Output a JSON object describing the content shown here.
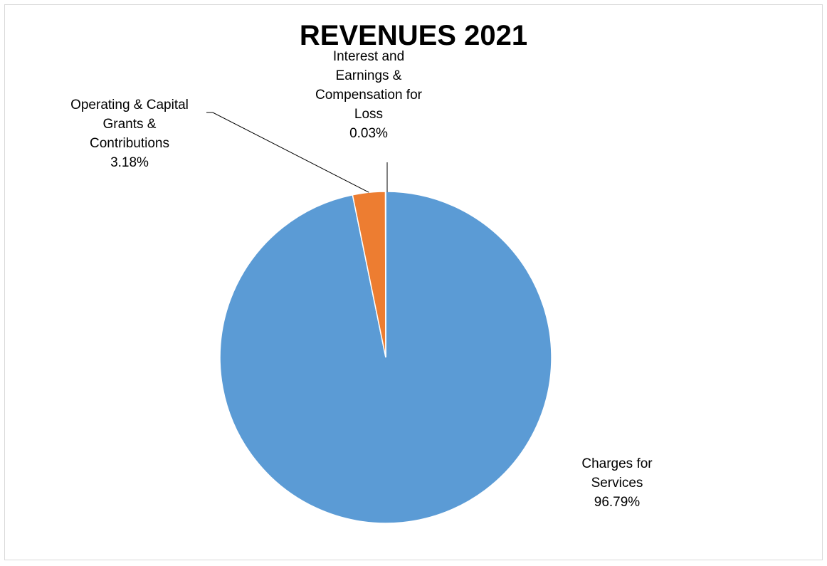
{
  "chart_data": {
    "type": "pie",
    "title": "REVENUES 2021",
    "slices": [
      {
        "name": "Charges for Services",
        "label_lines": [
          "Charges for",
          "Services"
        ],
        "value": 96.79,
        "value_label": "96.79%",
        "color": "#5B9BD5"
      },
      {
        "name": "Operating & Capital Grants & Contributions",
        "label_lines": [
          "Operating & Capital",
          "Grants &",
          "Contributions"
        ],
        "value": 3.18,
        "value_label": "3.18%",
        "color": "#ED7D31"
      },
      {
        "name": "Interest and Earnings & Compensation for Loss",
        "label_lines": [
          "Interest and",
          "Earnings &",
          "Compensation for",
          "Loss"
        ],
        "value": 0.03,
        "value_label": "0.03%",
        "color": "#A5A5A5"
      }
    ],
    "start_angle": "12 o'clock",
    "direction": "clockwise",
    "legend": "none"
  }
}
